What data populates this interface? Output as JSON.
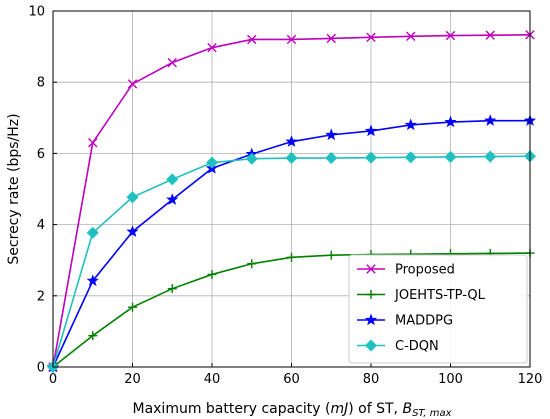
{
  "chart_data": {
    "type": "line",
    "xlabel": {
      "prefix": "Maximum battery capacity (",
      "unit": "mJ",
      "middle": ") of ST, ",
      "symbol": "B",
      "subscript": "ST, max"
    },
    "ylabel": "Secrecy rate (bps/Hz)",
    "xlim": [
      0,
      120
    ],
    "ylim": [
      0,
      10
    ],
    "xticks": [
      "0",
      "20",
      "40",
      "60",
      "80",
      "100",
      "120"
    ],
    "yticks": [
      "0",
      "2",
      "4",
      "6",
      "8",
      "10"
    ],
    "grid": true,
    "legend_position": "bottom-right",
    "x": [
      0,
      10,
      20,
      30,
      40,
      50,
      60,
      70,
      80,
      90,
      100,
      110,
      120
    ],
    "series": [
      {
        "name": "Proposed",
        "color": "#bf00bf",
        "marker": "x",
        "values": [
          0,
          6.3,
          7.95,
          8.55,
          8.97,
          9.2,
          9.2,
          9.23,
          9.26,
          9.29,
          9.31,
          9.32,
          9.33
        ]
      },
      {
        "name": "JOEHTS-TP-QL",
        "color": "#008000",
        "marker": "plus",
        "values": [
          0,
          0.88,
          1.68,
          2.2,
          2.6,
          2.9,
          3.08,
          3.14,
          3.16,
          3.17,
          3.18,
          3.19,
          3.2
        ]
      },
      {
        "name": "MADDPG",
        "color": "#0000ff",
        "marker": "star",
        "values": [
          0,
          2.42,
          3.8,
          4.7,
          5.58,
          5.98,
          6.33,
          6.52,
          6.63,
          6.8,
          6.88,
          6.92,
          6.92
        ]
      },
      {
        "name": "C-DQN",
        "color": "#20c0c0",
        "marker": "diamond",
        "values": [
          0,
          3.77,
          4.77,
          5.27,
          5.74,
          5.85,
          5.87,
          5.87,
          5.88,
          5.89,
          5.9,
          5.91,
          5.92
        ]
      }
    ]
  }
}
